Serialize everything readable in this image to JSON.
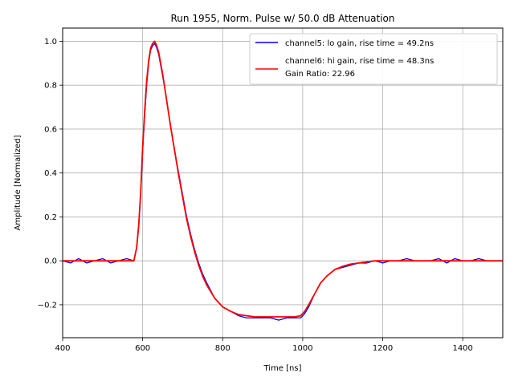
{
  "chart_data": {
    "type": "line",
    "title": "Run 1955, Norm. Pulse w/ 50.0 dB Attenuation",
    "xlabel": "Time [ns]",
    "ylabel": "Amplitude [Normalized]",
    "xlim": [
      400,
      1500
    ],
    "ylim": [
      -0.35,
      1.06
    ],
    "x_ticks": [
      400,
      600,
      800,
      1000,
      1200,
      1400
    ],
    "y_ticks": [
      -0.2,
      0.0,
      0.2,
      0.4,
      0.6,
      0.8,
      1.0
    ],
    "y_tick_labels": [
      "−0.2",
      "0.0",
      "0.2",
      "0.4",
      "0.6",
      "0.8",
      "1.0"
    ],
    "grid": true,
    "legend_position": "top-right",
    "legend_note": "Gain Ratio: 22.96",
    "series": [
      {
        "name": "channel5: lo gain, rise time = 49.2ns",
        "color": "#0000ff",
        "x": [
          400,
          420,
          440,
          460,
          480,
          500,
          520,
          540,
          560,
          578,
          585,
          590,
          595,
          600,
          605,
          610,
          615,
          620,
          625,
          630,
          635,
          640,
          645,
          650,
          655,
          660,
          670,
          680,
          690,
          700,
          710,
          720,
          730,
          740,
          750,
          760,
          780,
          800,
          820,
          840,
          860,
          880,
          900,
          920,
          940,
          960,
          980,
          995,
          1005,
          1015,
          1030,
          1045,
          1060,
          1080,
          1100,
          1120,
          1140,
          1160,
          1180,
          1200,
          1220,
          1240,
          1260,
          1280,
          1300,
          1320,
          1340,
          1360,
          1380,
          1400,
          1420,
          1440,
          1460,
          1480,
          1500
        ],
        "y": [
          0.0,
          -0.01,
          0.01,
          -0.01,
          0.0,
          0.01,
          -0.01,
          0.0,
          0.01,
          0.0,
          0.06,
          0.15,
          0.3,
          0.5,
          0.66,
          0.8,
          0.9,
          0.96,
          0.98,
          0.99,
          0.97,
          0.94,
          0.89,
          0.84,
          0.79,
          0.73,
          0.61,
          0.5,
          0.4,
          0.3,
          0.2,
          0.12,
          0.05,
          -0.01,
          -0.06,
          -0.1,
          -0.17,
          -0.21,
          -0.23,
          -0.25,
          -0.26,
          -0.26,
          -0.26,
          -0.26,
          -0.27,
          -0.26,
          -0.26,
          -0.26,
          -0.24,
          -0.21,
          -0.15,
          -0.1,
          -0.07,
          -0.04,
          -0.03,
          -0.02,
          -0.01,
          -0.01,
          0.0,
          -0.01,
          0.0,
          0.0,
          0.01,
          0.0,
          0.0,
          0.0,
          0.01,
          -0.01,
          0.01,
          0.0,
          0.0,
          0.01,
          0.0,
          0.0,
          0.0
        ]
      },
      {
        "name": "channel6: hi gain, rise time = 48.3ns",
        "color": "#ff0000",
        "x": [
          400,
          420,
          440,
          460,
          480,
          500,
          520,
          540,
          560,
          578,
          585,
          590,
          595,
          600,
          605,
          610,
          615,
          620,
          625,
          630,
          635,
          640,
          645,
          650,
          655,
          660,
          670,
          680,
          690,
          700,
          710,
          720,
          730,
          740,
          750,
          760,
          780,
          800,
          820,
          840,
          860,
          880,
          900,
          920,
          940,
          960,
          980,
          995,
          1005,
          1015,
          1030,
          1045,
          1060,
          1080,
          1100,
          1120,
          1140,
          1160,
          1180,
          1200,
          1220,
          1240,
          1260,
          1280,
          1300,
          1320,
          1340,
          1360,
          1380,
          1400,
          1420,
          1440,
          1460,
          1480,
          1500
        ],
        "y": [
          0.0,
          0.0,
          0.0,
          0.0,
          0.0,
          0.0,
          0.0,
          0.0,
          0.0,
          0.0,
          0.06,
          0.16,
          0.31,
          0.52,
          0.68,
          0.82,
          0.91,
          0.97,
          0.99,
          1.0,
          0.98,
          0.95,
          0.9,
          0.85,
          0.79,
          0.73,
          0.61,
          0.5,
          0.39,
          0.29,
          0.19,
          0.11,
          0.04,
          -0.02,
          -0.07,
          -0.11,
          -0.17,
          -0.21,
          -0.23,
          -0.245,
          -0.25,
          -0.255,
          -0.255,
          -0.255,
          -0.255,
          -0.255,
          -0.255,
          -0.25,
          -0.23,
          -0.2,
          -0.15,
          -0.1,
          -0.07,
          -0.04,
          -0.025,
          -0.015,
          -0.01,
          -0.005,
          0.0,
          0.0,
          0.0,
          0.0,
          0.0,
          0.0,
          0.0,
          0.0,
          0.0,
          0.0,
          0.0,
          0.0,
          0.0,
          0.0,
          0.0,
          0.0,
          0.0
        ]
      }
    ]
  }
}
